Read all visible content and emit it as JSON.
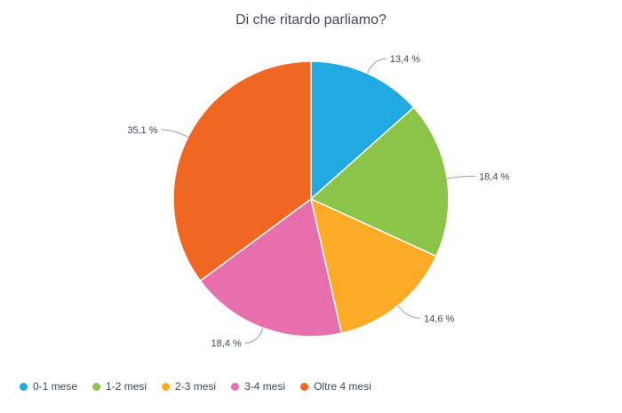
{
  "chart_data": {
    "type": "pie",
    "title": "Di che ritardo parliamo?",
    "slices": [
      {
        "label": "0-1 mese",
        "value": 13.4,
        "display": "13,4 %",
        "color": "#22a9e1"
      },
      {
        "label": "1-2 mesi",
        "value": 18.4,
        "display": "18,4 %",
        "color": "#8cc44a"
      },
      {
        "label": "2-3 mesi",
        "value": 14.6,
        "display": "14,6 %",
        "color": "#fbab26"
      },
      {
        "label": "3-4 mesi",
        "value": 18.4,
        "display": "18,4 %",
        "color": "#e76fae"
      },
      {
        "label": "Oltre 4 mesi",
        "value": 35.1,
        "display": "35,1 %",
        "color": "#f06623"
      }
    ],
    "legend_position": "bottom-left",
    "start_angle": "top",
    "direction": "clockwise"
  }
}
